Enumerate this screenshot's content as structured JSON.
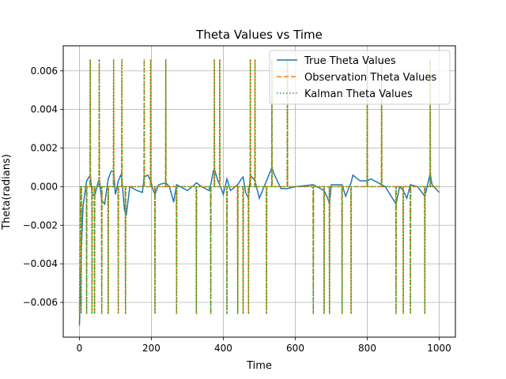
{
  "chart_data": {
    "type": "line",
    "title": "Theta Values vs Time",
    "xlabel": "Time",
    "ylabel": "Theta(radians)",
    "xlim": [
      -45,
      1045
    ],
    "ylim": [
      -0.0078,
      0.0073
    ],
    "xticks": [
      0,
      200,
      400,
      600,
      800,
      1000
    ],
    "xtick_labels": [
      "0",
      "200",
      "400",
      "600",
      "800",
      "1000"
    ],
    "yticks": [
      -0.006,
      -0.004,
      -0.002,
      0.0,
      0.002,
      0.004,
      0.006
    ],
    "ytick_labels": [
      "−0.006",
      "−0.004",
      "−0.002",
      "0.000",
      "0.002",
      "0.004",
      "0.006"
    ],
    "grid": true,
    "legend_position": "top-right",
    "baseline": 0.0,
    "spike_up_value": 0.0066,
    "spike_down_value": -0.0066,
    "spike_up_times": [
      30,
      55,
      95,
      118,
      180,
      198,
      240,
      375,
      390,
      475,
      488,
      535,
      578,
      800,
      840,
      975
    ],
    "spike_down_times": [
      5,
      20,
      35,
      42,
      62,
      80,
      108,
      128,
      210,
      270,
      325,
      365,
      410,
      440,
      455,
      470,
      520,
      650,
      680,
      695,
      730,
      755,
      880,
      900,
      920,
      960
    ],
    "series": [
      {
        "name": "True Theta Values",
        "color": "#1f77b4",
        "dash": "solid",
        "x": [
          0,
          5,
          10,
          20,
          30,
          35,
          42,
          50,
          55,
          62,
          70,
          80,
          88,
          95,
          100,
          108,
          115,
          118,
          125,
          130,
          140,
          160,
          175,
          180,
          190,
          198,
          205,
          210,
          220,
          240,
          250,
          262,
          270,
          280,
          300,
          320,
          325,
          340,
          360,
          365,
          372,
          375,
          385,
          390,
          400,
          410,
          420,
          440,
          450,
          455,
          462,
          470,
          475,
          488,
          500,
          520,
          535,
          540,
          560,
          578,
          600,
          650,
          660,
          680,
          690,
          695,
          700,
          730,
          740,
          750,
          755,
          760,
          780,
          800,
          810,
          840,
          850,
          880,
          890,
          900,
          910,
          920,
          940,
          960,
          975,
          980,
          1000
        ],
        "y": [
          -0.0072,
          -0.0035,
          -0.001,
          0.0003,
          0.0006,
          -0.0003,
          -0.0005,
          0.0001,
          0.0004,
          -0.0007,
          -0.0009,
          0.0004,
          0.0008,
          0.0008,
          -0.0004,
          0.0003,
          0.0006,
          0.0004,
          -0.0012,
          -0.0015,
          0.0,
          -0.0002,
          -0.0003,
          0.0005,
          0.0006,
          0.0003,
          -0.0002,
          -0.0004,
          0.0001,
          0.0002,
          0.0,
          -0.0008,
          0.0001,
          0.0,
          -0.0002,
          0.0001,
          0.0002,
          0.0,
          -0.0002,
          0.0001,
          0.0008,
          0.0009,
          0.0003,
          0.0001,
          -0.0004,
          0.0004,
          -0.0002,
          0.0001,
          0.0004,
          0.0005,
          -0.0003,
          -0.0006,
          0.0006,
          0.0003,
          -0.0006,
          0.0003,
          0.001,
          0.0007,
          -0.0001,
          -0.0001,
          0.0,
          0.0001,
          0.0,
          -0.0002,
          -0.0006,
          -0.0009,
          0.0001,
          0.0001,
          -0.0005,
          0.0,
          0.0002,
          0.0006,
          0.0003,
          0.0003,
          0.0004,
          0.0001,
          0.0,
          -0.0009,
          0.0,
          -0.0002,
          -0.0006,
          0.0001,
          0.0,
          -0.0005,
          0.0007,
          0.0001,
          -0.0003
        ]
      },
      {
        "name": "Observation Theta Values",
        "color": "#ff7f0e",
        "dash": "dashed"
      },
      {
        "name": "Kalman Theta Values",
        "color": "#2ca02c",
        "dash": "dotted"
      }
    ]
  }
}
